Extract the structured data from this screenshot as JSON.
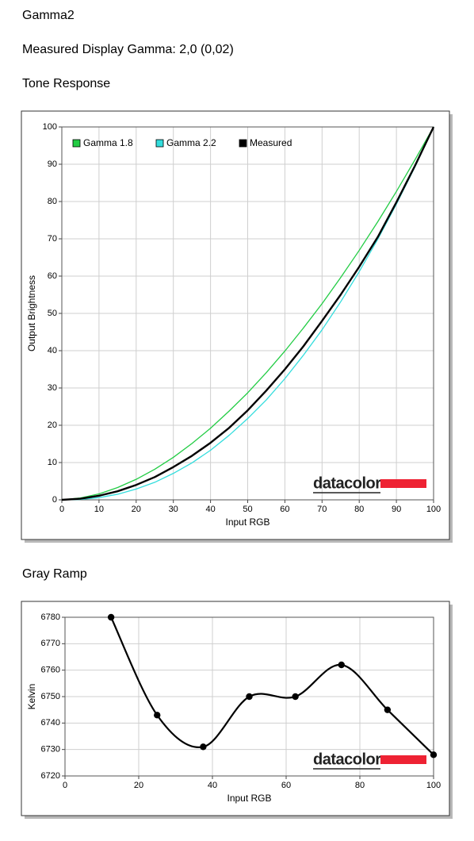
{
  "header": {
    "title": "Gamma2",
    "subtitle": "Measured Display Gamma: 2,0 (0,02)"
  },
  "chart_data": [
    {
      "type": "line",
      "title": "Tone Response",
      "x_label": "Input RGB",
      "y_label": "Output Brightness",
      "x": [
        0,
        5,
        10,
        15,
        20,
        25,
        30,
        35,
        40,
        45,
        50,
        55,
        60,
        65,
        70,
        75,
        80,
        85,
        90,
        95,
        100
      ],
      "series": [
        {
          "name": "Gamma 1.8",
          "color": "#22cc44",
          "width": 1.3,
          "values": [
            0,
            0.5,
            1.6,
            3.3,
            5.5,
            8.2,
            11.4,
            15.1,
            19.2,
            23.8,
            28.7,
            34.1,
            39.9,
            46.1,
            52.6,
            59.6,
            66.9,
            74.6,
            82.7,
            91.2,
            100
          ]
        },
        {
          "name": "Gamma 2.2",
          "color": "#33dddd",
          "width": 1.3,
          "values": [
            0,
            0.1,
            0.6,
            1.5,
            2.9,
            4.7,
            7.1,
            9.9,
            13.3,
            17.3,
            21.8,
            26.8,
            32.5,
            38.8,
            45.6,
            53.1,
            61.2,
            69.9,
            79.3,
            89.3,
            100
          ]
        },
        {
          "name": "Measured",
          "color": "#000000",
          "width": 2.4,
          "values": [
            0,
            0.3,
            1.1,
            2.3,
            4.0,
            6.1,
            8.8,
            11.8,
            15.3,
            19.3,
            24.0,
            29.3,
            35.0,
            41.2,
            48.0,
            55.0,
            62.5,
            70.5,
            79.8,
            89.6,
            100
          ]
        }
      ],
      "xlim": [
        0,
        100
      ],
      "xticks": [
        0,
        10,
        20,
        30,
        40,
        50,
        60,
        70,
        80,
        90,
        100
      ],
      "ylim": [
        0,
        100
      ],
      "yticks": [
        0,
        10,
        20,
        30,
        40,
        50,
        60,
        70,
        80,
        90,
        100
      ],
      "grid": true,
      "legend": "top-left",
      "smooth": false,
      "markers": false,
      "watermark": "datacolor"
    },
    {
      "type": "line",
      "title": "Gray Ramp",
      "x_label": "Input RGB",
      "y_label": "Kelvin",
      "x": [
        12.5,
        25,
        37.5,
        50,
        62.5,
        75,
        87.5,
        100
      ],
      "series": [
        {
          "color": "#000000",
          "width": 2.2,
          "values": [
            6780,
            6743,
            6731,
            6750,
            6750,
            6762,
            6745,
            6728
          ]
        }
      ],
      "xlim": [
        0,
        100
      ],
      "xticks": [
        0,
        20,
        40,
        60,
        80,
        100
      ],
      "ylim": [
        6720,
        6780
      ],
      "yticks": [
        6720,
        6730,
        6740,
        6750,
        6760,
        6770,
        6780
      ],
      "grid": true,
      "smooth": true,
      "markers": true,
      "watermark": "datacolor"
    }
  ]
}
